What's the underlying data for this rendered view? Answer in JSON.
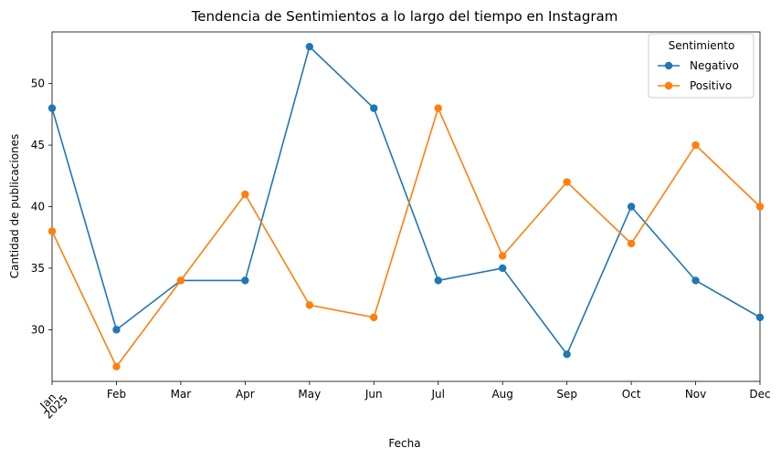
{
  "chart_data": {
    "type": "line",
    "title": "Tendencia de Sentimientos a lo largo del tiempo en Instagram",
    "xlabel": "Fecha",
    "ylabel": "Cantidad de publicaciones",
    "categories": [
      "Jan",
      "Feb",
      "Mar",
      "Apr",
      "May",
      "Jun",
      "Jul",
      "Aug",
      "Sep",
      "Oct",
      "Nov",
      "Dec"
    ],
    "year_label": "2025",
    "ylim": [
      25.8,
      54.2
    ],
    "yticks": [
      30,
      35,
      40,
      45,
      50
    ],
    "grid": false,
    "legend": {
      "title": "Sentimiento",
      "placement": "top-right"
    },
    "series": [
      {
        "name": "Negativo",
        "color": "#1f77b4",
        "marker": "circle",
        "values": [
          48,
          30,
          34,
          34,
          53,
          48,
          34,
          35,
          28,
          40,
          34,
          31
        ]
      },
      {
        "name": "Positivo",
        "color": "#ff7f0e",
        "marker": "circle",
        "values": [
          38,
          27,
          34,
          41,
          32,
          31,
          48,
          36,
          42,
          37,
          45,
          40
        ]
      }
    ]
  }
}
